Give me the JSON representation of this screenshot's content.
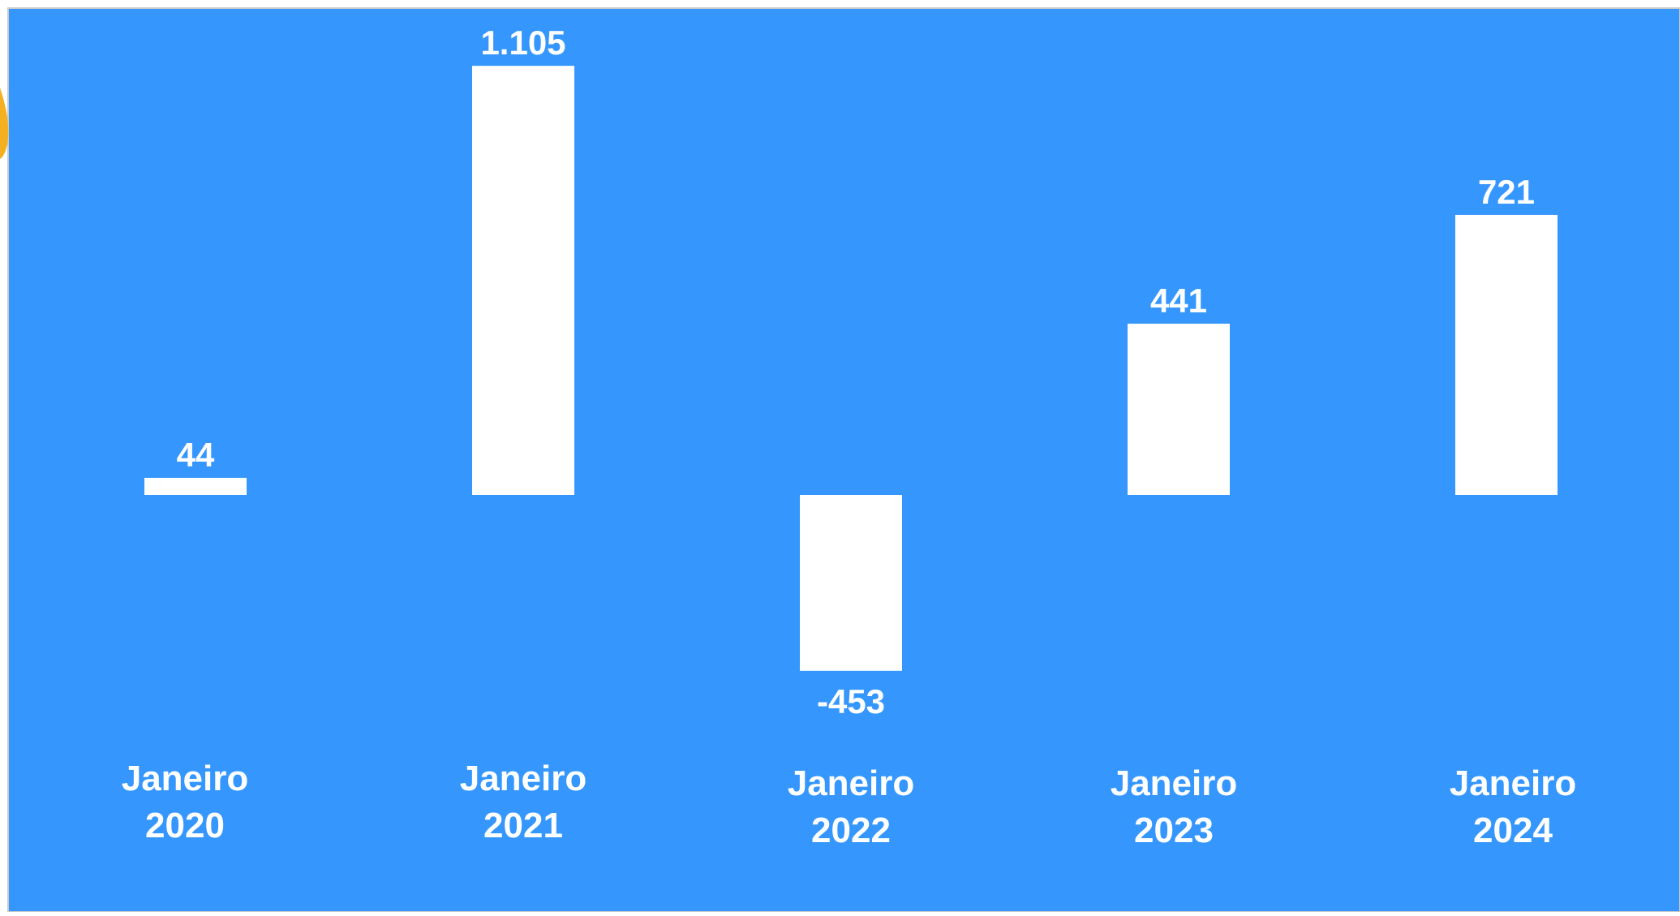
{
  "colors": {
    "background": "#3597FD",
    "bar": "#FFFFFF",
    "label_text": "#FFFFFF",
    "accent_shape": "#F5B021",
    "frame": "#C9C9C9"
  },
  "chart_data": {
    "type": "bar",
    "title": "",
    "xlabel": "",
    "ylabel": "",
    "categories": [
      [
        "Janeiro",
        "2020"
      ],
      [
        "Janeiro",
        "2021"
      ],
      [
        "Janeiro",
        "2022"
      ],
      [
        "Janeiro",
        "2023"
      ],
      [
        "Janeiro",
        "2024"
      ]
    ],
    "values": [
      44,
      1105,
      -453,
      441,
      721
    ],
    "value_labels": [
      "44",
      "1.105",
      "-453",
      "441",
      "721"
    ],
    "ylim": [
      -453,
      1105
    ],
    "grid": false,
    "legend": "none"
  }
}
